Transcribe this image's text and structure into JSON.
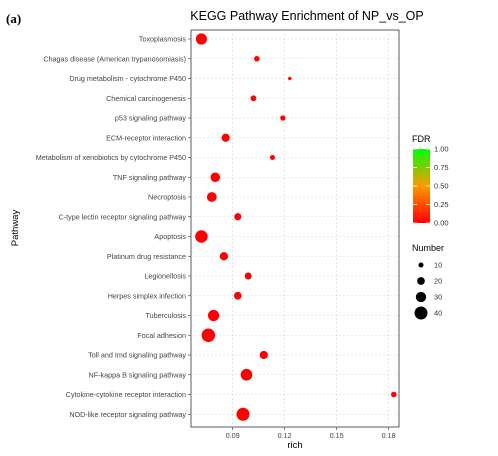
{
  "panel_label": "(a)",
  "chart_data": {
    "type": "scatter",
    "title": "KEGG Pathway Enrichment of NP_vs_OP",
    "xlabel": "rich",
    "ylabel": "Pathway",
    "xlim": [
      0.066,
      0.186
    ],
    "xticks": [
      "0.09",
      "0.12",
      "0.15",
      "0.18"
    ],
    "grid": true,
    "categories": [
      "Toxoplasmosis",
      "Chagas disease (American trypanosomiasis)",
      "Drug metabolism - cytochrome P450",
      "Chemical carcinogenesis",
      "p53 signaling pathway",
      "ECM-receptor interaction",
      "Metabolism of xenobiotics by cytochrome P450",
      "TNF signaling pathway",
      "Necroptosis",
      "C-type lectin receptor signaling pathway",
      "Apoptosis",
      "Platinum drug resistance",
      "Legionellosis",
      "Herpes simplex infection",
      "Tuberculosis",
      "Focal adhesion",
      "Toll and Imd signaling pathway",
      "NF-kappa B signaling pathway",
      "Cytokine-cytokine receptor interaction",
      "NOD-like receptor signaling pathway"
    ],
    "points": [
      {
        "pathway": "Toxoplasmosis",
        "rich": 0.072,
        "number": 33,
        "fdr": 0.0
      },
      {
        "pathway": "Chagas disease (American trypanosomiasis)",
        "rich": 0.104,
        "number": 12,
        "fdr": 0.0
      },
      {
        "pathway": "Drug metabolism - cytochrome P450",
        "rich": 0.123,
        "number": 4,
        "fdr": 0.05
      },
      {
        "pathway": "Chemical carcinogenesis",
        "rich": 0.102,
        "number": 13,
        "fdr": 0.03
      },
      {
        "pathway": "p53 signaling pathway",
        "rich": 0.119,
        "number": 11,
        "fdr": 0.0
      },
      {
        "pathway": "ECM-receptor interaction",
        "rich": 0.086,
        "number": 22,
        "fdr": 0.0
      },
      {
        "pathway": "Metabolism of xenobiotics by cytochrome P450",
        "rich": 0.113,
        "number": 10,
        "fdr": 0.0
      },
      {
        "pathway": "TNF signaling pathway",
        "rich": 0.08,
        "number": 27,
        "fdr": 0.0
      },
      {
        "pathway": "Necroptosis",
        "rich": 0.078,
        "number": 28,
        "fdr": 0.0
      },
      {
        "pathway": "C-type lectin receptor signaling pathway",
        "rich": 0.093,
        "number": 18,
        "fdr": 0.0
      },
      {
        "pathway": "Apoptosis",
        "rich": 0.072,
        "number": 38,
        "fdr": 0.0
      },
      {
        "pathway": "Platinum drug resistance",
        "rich": 0.085,
        "number": 22,
        "fdr": 0.0
      },
      {
        "pathway": "Legionellosis",
        "rich": 0.099,
        "number": 17,
        "fdr": 0.0
      },
      {
        "pathway": "Herpes simplex infection",
        "rich": 0.093,
        "number": 20,
        "fdr": 0.0
      },
      {
        "pathway": "Tuberculosis",
        "rich": 0.079,
        "number": 33,
        "fdr": 0.0
      },
      {
        "pathway": "Focal adhesion",
        "rich": 0.076,
        "number": 42,
        "fdr": 0.0
      },
      {
        "pathway": "Toll and Imd signaling pathway",
        "rich": 0.108,
        "number": 22,
        "fdr": 0.0
      },
      {
        "pathway": "NF-kappa B signaling pathway",
        "rich": 0.098,
        "number": 35,
        "fdr": 0.0
      },
      {
        "pathway": "Cytokine-cytokine receptor interaction",
        "rich": 0.183,
        "number": 12,
        "fdr": 0.0
      },
      {
        "pathway": "NOD-like receptor signaling pathway",
        "rich": 0.096,
        "number": 40,
        "fdr": 0.0
      }
    ],
    "color_legend": {
      "title": "FDR",
      "ticks": [
        "1.00",
        "0.75",
        "0.50",
        "0.25",
        "0.00"
      ],
      "low_color": "#ff0000",
      "high_color": "#00ff00"
    },
    "size_legend": {
      "title": "Number",
      "values": [
        10,
        20,
        30,
        40
      ]
    }
  }
}
